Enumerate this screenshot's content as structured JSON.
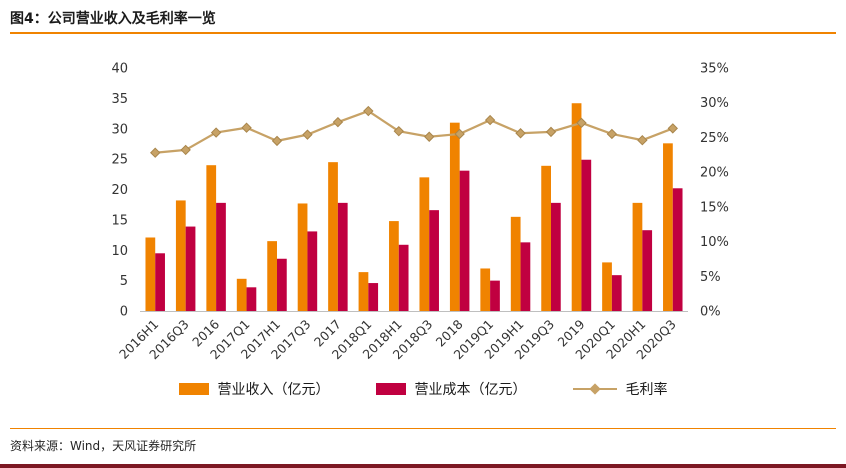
{
  "header": {
    "title": "图4：公司营业收入及毛利率一览"
  },
  "footer": {
    "source": "资料来源：Wind，天风证券研究所"
  },
  "colors": {
    "accent_orange": "#F08300",
    "revenue_bar": "#F08300",
    "cost_bar": "#C00040",
    "margin_line": "#C7A266",
    "bottom_bar": "#7C1823"
  },
  "chart_data": {
    "type": "combo",
    "title": "公司营业收入及毛利率一览",
    "categories": [
      "2016H1",
      "2016Q3",
      "2016",
      "2017Q1",
      "2017H1",
      "2017Q3",
      "2017",
      "2018Q1",
      "2018H1",
      "2018Q3",
      "2018",
      "2019Q1",
      "2019H1",
      "2019Q3",
      "2019",
      "2020Q1",
      "2020H1",
      "2020Q3"
    ],
    "series": [
      {
        "name": "营业收入（亿元）",
        "type": "bar",
        "axis": "left",
        "color": "#F08300",
        "values": [
          12.1,
          18.2,
          24.0,
          5.3,
          11.5,
          17.7,
          24.5,
          6.4,
          14.8,
          22.0,
          31.0,
          7.0,
          15.5,
          23.9,
          34.2,
          8.0,
          17.8,
          27.6
        ]
      },
      {
        "name": "营业成本（亿元）",
        "type": "bar",
        "axis": "left",
        "color": "#C00040",
        "values": [
          9.5,
          13.9,
          17.8,
          3.9,
          8.6,
          13.1,
          17.8,
          4.6,
          10.9,
          16.6,
          23.1,
          5.0,
          11.3,
          17.8,
          24.9,
          5.9,
          13.3,
          20.2
        ]
      },
      {
        "name": "毛利率",
        "type": "line",
        "axis": "right",
        "color": "#C7A266",
        "values": [
          22.8,
          23.2,
          25.7,
          26.4,
          24.5,
          25.4,
          27.2,
          28.8,
          25.9,
          25.1,
          25.5,
          27.5,
          25.6,
          25.8,
          27.1,
          25.5,
          24.6,
          26.3
        ]
      }
    ],
    "left_axis": {
      "min": 0,
      "max": 40,
      "step": 5,
      "ticks": [
        "0",
        "5",
        "10",
        "15",
        "20",
        "25",
        "30",
        "35",
        "40"
      ]
    },
    "right_axis": {
      "min": 0,
      "max": 35,
      "step": 5,
      "ticks": [
        "0%",
        "5%",
        "10%",
        "15%",
        "20%",
        "25%",
        "30%",
        "35%"
      ]
    },
    "grid": false,
    "legend_position": "bottom"
  }
}
